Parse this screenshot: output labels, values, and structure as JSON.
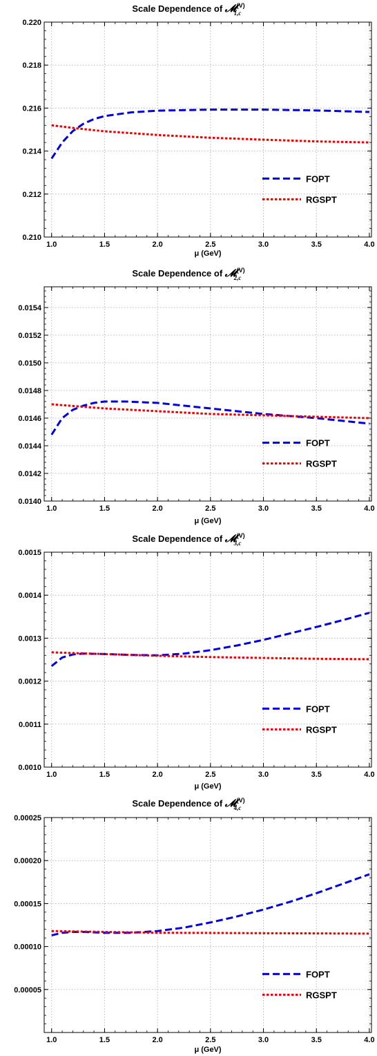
{
  "chart_data": [
    {
      "type": "line",
      "title": "Scale Dependence of",
      "title_symbol": "𝓜",
      "title_superscript": "(V)",
      "title_subscript": "1,c",
      "xlabel": "μ (GeV)",
      "xlim": [
        0.93,
        4.02
      ],
      "ylim": [
        0.21,
        0.22
      ],
      "xticks": [
        "1.0",
        "1.5",
        "2.0",
        "2.5",
        "3.0",
        "3.5",
        "4.0"
      ],
      "yticks": [
        "0.210",
        "0.212",
        "0.214",
        "0.216",
        "0.218",
        "0.220"
      ],
      "grid": true,
      "legend_position": "bottom-right",
      "series": [
        {
          "name": "FOPT",
          "color": "#0000dd",
          "dash": "dashed",
          "x": [
            1.0,
            1.1,
            1.2,
            1.3,
            1.4,
            1.5,
            1.75,
            2.0,
            2.5,
            3.0,
            3.5,
            4.0
          ],
          "y": [
            0.21365,
            0.2144,
            0.21493,
            0.21527,
            0.21549,
            0.21563,
            0.2158,
            0.21588,
            0.21593,
            0.21593,
            0.21589,
            0.21582
          ]
        },
        {
          "name": "RGSPT",
          "color": "#ee0000",
          "dash": "dotted",
          "x": [
            1.0,
            1.25,
            1.5,
            2.0,
            2.5,
            3.0,
            3.5,
            4.0
          ],
          "y": [
            0.2152,
            0.21505,
            0.21492,
            0.21475,
            0.21462,
            0.21453,
            0.21445,
            0.2144
          ]
        }
      ]
    },
    {
      "type": "line",
      "title": "Scale Dependence of",
      "title_symbol": "𝓜",
      "title_superscript": "(V)",
      "title_subscript": "2,c",
      "xlabel": "μ (GeV)",
      "xlim": [
        0.93,
        4.02
      ],
      "ylim": [
        0.014,
        0.01555
      ],
      "xticks": [
        "1.0",
        "1.5",
        "2.0",
        "2.5",
        "3.0",
        "3.5",
        "4.0"
      ],
      "yticks": [
        "0.0140",
        "0.0142",
        "0.0144",
        "0.0146",
        "0.0148",
        "0.0150",
        "0.0152",
        "0.0154"
      ],
      "grid": true,
      "legend_position": "bottom-right",
      "series": [
        {
          "name": "FOPT",
          "color": "#0000dd",
          "dash": "dashed",
          "x": [
            1.0,
            1.1,
            1.2,
            1.3,
            1.4,
            1.5,
            1.6,
            1.7,
            2.0,
            2.5,
            3.0,
            3.5,
            4.0
          ],
          "y": [
            0.01448,
            0.0146,
            0.01466,
            0.01469,
            0.01471,
            0.01472,
            0.01472,
            0.01472,
            0.01471,
            0.01467,
            0.01463,
            0.0146,
            0.01456
          ]
        },
        {
          "name": "RGSPT",
          "color": "#ee0000",
          "dash": "dotted",
          "x": [
            1.0,
            1.5,
            2.0,
            2.5,
            3.0,
            3.5,
            4.0
          ],
          "y": [
            0.0147,
            0.01467,
            0.01465,
            0.01463,
            0.01462,
            0.01461,
            0.0146
          ]
        }
      ]
    },
    {
      "type": "line",
      "title": "Scale Dependence of",
      "title_symbol": "𝓜",
      "title_superscript": "(V)",
      "title_subscript": "3,c",
      "xlabel": "μ (GeV)",
      "xlim": [
        0.93,
        4.02
      ],
      "ylim": [
        0.001,
        0.0015
      ],
      "xticks": [
        "1.0",
        "1.5",
        "2.0",
        "2.5",
        "3.0",
        "3.5",
        "4.0"
      ],
      "yticks": [
        "0.0010",
        "0.0011",
        "0.0012",
        "0.0013",
        "0.0014",
        "0.0015"
      ],
      "grid": true,
      "legend_position": "bottom-right",
      "series": [
        {
          "name": "FOPT",
          "color": "#0000dd",
          "dash": "dashed",
          "x": [
            1.0,
            1.1,
            1.2,
            1.3,
            1.5,
            1.75,
            2.0,
            2.25,
            2.5,
            2.75,
            3.0,
            3.25,
            3.5,
            3.75,
            4.0
          ],
          "y": [
            0.001235,
            0.001255,
            0.001262,
            0.001264,
            0.001263,
            0.001261,
            0.00126,
            0.001264,
            0.001272,
            0.001283,
            0.001296,
            0.001311,
            0.001326,
            0.001342,
            0.001359
          ]
        },
        {
          "name": "RGSPT",
          "color": "#ee0000",
          "dash": "dotted",
          "x": [
            1.0,
            1.5,
            2.0,
            2.5,
            3.0,
            3.5,
            4.0
          ],
          "y": [
            0.001267,
            0.001263,
            0.001259,
            0.001256,
            0.001254,
            0.001252,
            0.001251
          ]
        }
      ]
    },
    {
      "type": "line",
      "title": "Scale Dependence of",
      "title_symbol": "𝓜",
      "title_superscript": "(V)",
      "title_subscript": "4,c",
      "xlabel": "μ (GeV)",
      "xlim": [
        0.93,
        4.02
      ],
      "ylim": [
        0.0,
        0.00025
      ],
      "xticks": [
        "1.0",
        "1.5",
        "2.0",
        "2.5",
        "3.0",
        "3.5",
        "4.0"
      ],
      "yticks": [
        "0.00005",
        "0.00010",
        "0.00015",
        "0.00020",
        "0.00025"
      ],
      "grid": true,
      "legend_position": "bottom-right",
      "series": [
        {
          "name": "FOPT",
          "color": "#0000dd",
          "dash": "dashed",
          "x": [
            1.0,
            1.1,
            1.2,
            1.3,
            1.5,
            1.75,
            2.0,
            2.25,
            2.5,
            2.75,
            3.0,
            3.25,
            3.5,
            3.75,
            4.0
          ],
          "y": [
            0.000113,
            0.000116,
            0.000117,
            0.000117,
            0.000116,
            0.000116,
            0.000118,
            0.000122,
            0.000128,
            0.000135,
            0.000143,
            0.000152,
            0.000162,
            0.000173,
            0.000184
          ]
        },
        {
          "name": "RGSPT",
          "color": "#ee0000",
          "dash": "dotted",
          "x": [
            1.0,
            1.5,
            2.0,
            2.5,
            3.0,
            3.5,
            4.0
          ],
          "y": [
            0.000118,
            0.000117,
            0.000116,
            0.0001158,
            0.0001155,
            0.0001153,
            0.000115
          ]
        }
      ]
    }
  ]
}
